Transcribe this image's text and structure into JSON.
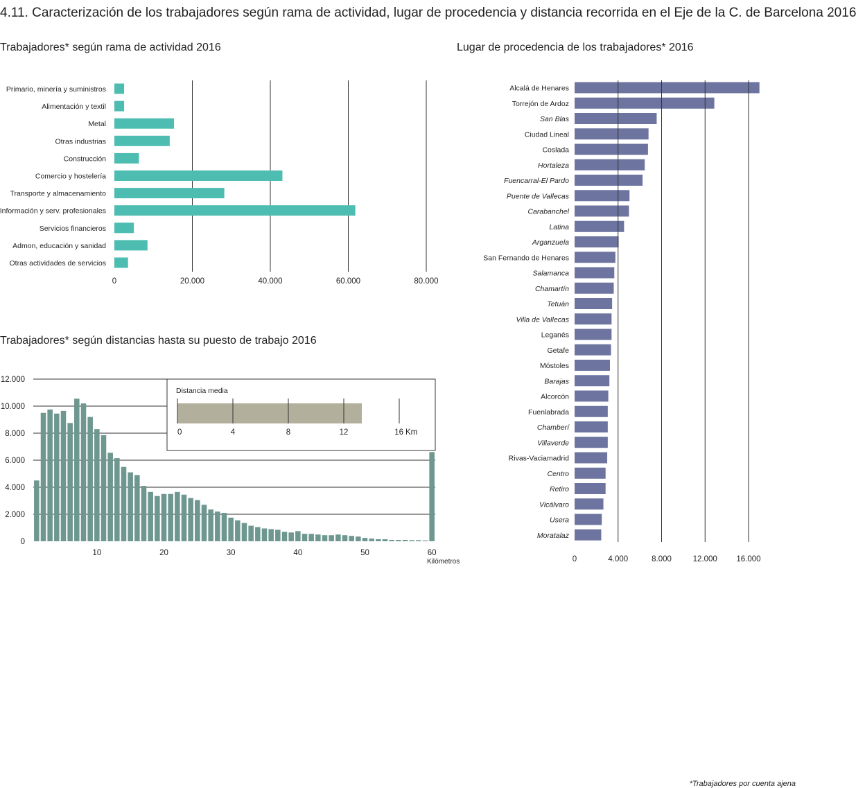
{
  "page": {
    "title": "4.11. Caracterización de los trabajadores según rama de actividad, lugar de procedencia y distancia recorrida en el Eje de la C. de Barcelona 2016",
    "footnote": "*Trabajadores por cuenta ajena"
  },
  "colors": {
    "activity_bar": "#4ebdb1",
    "origin_bar": "#6c749f",
    "distance_bar": "#6e9790",
    "mean_bar": "#b3af9d",
    "grid": "#333333"
  },
  "chart_data": [
    {
      "id": "activity",
      "type": "bar",
      "orientation": "horizontal",
      "title": "Trabajadores* según rama de actividad 2016",
      "categories": [
        "Primario, minería y suministros",
        "Alimentación y textil",
        "Metal",
        "Otras industrias",
        "Construcción",
        "Comercio y hostelería",
        "Transporte y almacenamiento",
        "Información y serv. profesionales",
        "Servicios financieros",
        "Admon, educación y sanidad",
        "Otras actividades de servicios"
      ],
      "values": [
        2500,
        2500,
        15300,
        14200,
        6300,
        43100,
        28200,
        61800,
        5000,
        8500,
        3500
      ],
      "xlim": [
        0,
        80000
      ],
      "xticks": [
        0,
        20000,
        40000,
        60000,
        80000
      ],
      "xtick_labels": [
        "0",
        "20.000",
        "40.000",
        "60.000",
        "80.000"
      ],
      "grid": true
    },
    {
      "id": "origin",
      "type": "bar",
      "orientation": "horizontal",
      "title": "Lugar de procedencia de los trabajadores* 2016",
      "categories": [
        "Alcalá de Henares",
        "Torrejón de Ardoz",
        "San Blas",
        "Ciudad Lineal",
        "Coslada",
        "Hortaleza",
        "Fuencarral-El Pardo",
        "Puente de Vallecas",
        "Carabanchel",
        "Latina",
        "Arganzuela",
        "San Fernando de Henares",
        "Salamanca",
        "Chamartín",
        "Tetuán",
        "Villa de Vallecas",
        "Leganés",
        "Getafe",
        "Móstoles",
        "Barajas",
        "Alcorcón",
        "Fuenlabrada",
        "Chamberí",
        "Villaverde",
        "Rivas-Vaciamadrid",
        "Centro",
        "Retiro",
        "Vicálvaro",
        "Usera",
        "Moratalaz"
      ],
      "italic": [
        false,
        false,
        true,
        false,
        false,
        true,
        true,
        true,
        true,
        true,
        true,
        false,
        true,
        true,
        true,
        true,
        false,
        false,
        false,
        true,
        false,
        false,
        true,
        true,
        false,
        true,
        true,
        true,
        true,
        true
      ],
      "values": [
        17000,
        12850,
        7550,
        6800,
        6750,
        6450,
        6250,
        5050,
        5000,
        4550,
        4050,
        3750,
        3650,
        3600,
        3450,
        3400,
        3400,
        3350,
        3250,
        3200,
        3100,
        3050,
        3050,
        3050,
        3000,
        2850,
        2850,
        2650,
        2500,
        2450
      ],
      "xlim": [
        0,
        16500
      ],
      "xticks": [
        0,
        4000,
        8000,
        12000,
        16000
      ],
      "xtick_labels": [
        "0",
        "4.000",
        "8.000",
        "12.000",
        "16.000"
      ],
      "grid": true
    },
    {
      "id": "distance",
      "type": "bar",
      "title": "Trabajadores* según distancias hasta su puesto de trabajo 2016",
      "xlabel": "Kilómetros",
      "x": [
        1,
        2,
        3,
        4,
        5,
        6,
        7,
        8,
        9,
        10,
        11,
        12,
        13,
        14,
        15,
        16,
        17,
        18,
        19,
        20,
        21,
        22,
        23,
        24,
        25,
        26,
        27,
        28,
        29,
        30,
        31,
        32,
        33,
        34,
        35,
        36,
        37,
        38,
        39,
        40,
        41,
        42,
        43,
        44,
        45,
        46,
        47,
        48,
        49,
        50,
        51,
        52,
        53,
        54,
        55,
        56,
        57,
        58,
        59,
        60
      ],
      "values": [
        4500,
        9500,
        9750,
        9450,
        9650,
        8750,
        10550,
        10200,
        9200,
        8300,
        7850,
        6550,
        6150,
        5500,
        5100,
        4900,
        4100,
        3650,
        3350,
        3500,
        3500,
        3650,
        3450,
        3200,
        3050,
        2700,
        2350,
        2200,
        2100,
        1750,
        1550,
        1350,
        1150,
        1050,
        950,
        900,
        850,
        700,
        650,
        750,
        550,
        550,
        500,
        450,
        450,
        500,
        450,
        400,
        350,
        250,
        200,
        150,
        150,
        100,
        100,
        100,
        80,
        80,
        60,
        6600
      ],
      "xticks": [
        10,
        20,
        30,
        40,
        50,
        60
      ],
      "xtick_labels": [
        "10",
        "20",
        "30",
        "40",
        "50",
        "60"
      ],
      "ylim": [
        0,
        12000
      ],
      "yticks": [
        0,
        2000,
        4000,
        6000,
        8000,
        10000,
        12000
      ],
      "ytick_labels": [
        "0",
        "2.000",
        "4.000",
        "6.000",
        "8.000",
        "10.000",
        "12.000"
      ],
      "grid": true
    },
    {
      "id": "mean_distance",
      "type": "bar",
      "orientation": "horizontal",
      "title": "Distancia media",
      "value": 13.3,
      "xlim": [
        0,
        16
      ],
      "xticks": [
        0,
        4,
        8,
        12,
        16
      ],
      "xtick_labels": [
        "0",
        "4",
        "8",
        "12",
        "16"
      ],
      "unit": "Km"
    }
  ]
}
